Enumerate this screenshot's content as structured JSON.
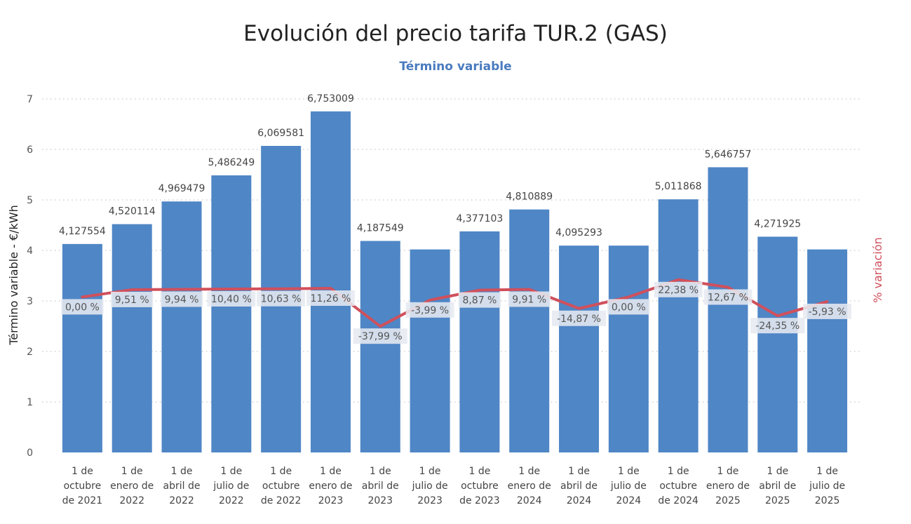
{
  "chart_data": {
    "type": "bar",
    "title": "Evolución del precio tarifa TUR.2 (GAS)",
    "subtitle": "Término variable",
    "ylabel": "Término variable - €/kWh",
    "y2label": "% variación",
    "ylim": [
      0,
      7
    ],
    "yticks": [
      "0",
      "1",
      "2",
      "3",
      "4",
      "5",
      "6",
      "7"
    ],
    "grid": true,
    "categories": [
      [
        "1 de",
        "octubre",
        "de 2021"
      ],
      [
        "1 de",
        "enero de",
        "2022"
      ],
      [
        "1 de",
        "abril de",
        "2022"
      ],
      [
        "1 de",
        "julio de",
        "2022"
      ],
      [
        "1 de",
        "octubre",
        "de 2022"
      ],
      [
        "1 de",
        "enero de",
        "2023"
      ],
      [
        "1 de",
        "abril de",
        "2023"
      ],
      [
        "1 de",
        "julio de",
        "2023"
      ],
      [
        "1 de",
        "octubre",
        "de 2023"
      ],
      [
        "1 de",
        "enero de",
        "2024"
      ],
      [
        "1 de",
        "abril de",
        "2024"
      ],
      [
        "1 de",
        "julio de",
        "2024"
      ],
      [
        "1 de",
        "octubre",
        "de 2024"
      ],
      [
        "1 de",
        "enero de",
        "2025"
      ],
      [
        "1 de",
        "abril de",
        "2025"
      ],
      [
        "1 de",
        "julio de",
        "2025"
      ]
    ],
    "series": [
      {
        "type": "bar",
        "color": "#4f86c6",
        "values": [
          4.127554,
          4.520114,
          4.969479,
          5.486249,
          6.069581,
          6.753009,
          4.187549,
          4.02,
          4.377103,
          4.810889,
          4.095293,
          4.095293,
          5.011868,
          5.646757,
          4.271925,
          4.02
        ],
        "labels": [
          "4,127554",
          "4,520114",
          "4,969479",
          "5,486249",
          "6,069581",
          "6,753009",
          "4,187549",
          "",
          "4,377103",
          "4,810889",
          "4,095293",
          "",
          "5,011868",
          "5,646757",
          "4,271925",
          ""
        ]
      },
      {
        "type": "line",
        "color": "#d0505c",
        "axis": "secondary",
        "values": [
          0.0,
          9.51,
          9.94,
          10.4,
          10.63,
          11.26,
          -37.99,
          -3.99,
          8.87,
          9.91,
          -14.87,
          0.0,
          22.38,
          12.67,
          -24.35,
          -5.93
        ],
        "labels": [
          "0,00 %",
          "9,51 %",
          "9,94 %",
          "10,40 %",
          "10,63 %",
          "11,26 %",
          "-37,99 %",
          "-3,99 %",
          "8,87 %",
          "9,91 %",
          "-14,87 %",
          "0,00 %",
          "22,38 %",
          "12,67 %",
          "-24,35 %",
          "-5,93 %"
        ]
      }
    ]
  }
}
